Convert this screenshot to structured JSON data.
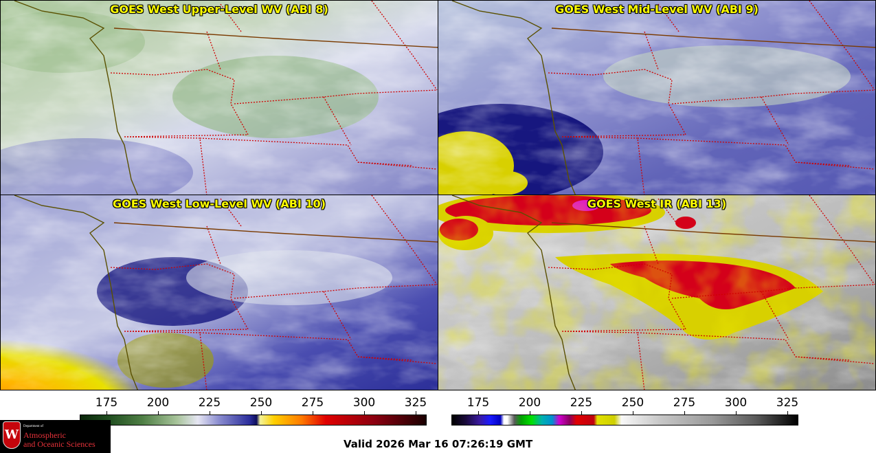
{
  "panels": [
    {
      "title": "GOES West Upper-Level WV (ABI 8)"
    },
    {
      "title": "GOES West Mid-Level WV (ABI 9)"
    },
    {
      "title": "GOES West Low-Level WV (ABI 10)"
    },
    {
      "title": "GOES West IR (ABI 13)"
    }
  ],
  "colorbars": {
    "wv": {
      "ticks": [
        "175",
        "200",
        "225",
        "250",
        "275",
        "300",
        "325"
      ]
    },
    "ir": {
      "ticks": [
        "175",
        "200",
        "225",
        "250",
        "275",
        "300",
        "325"
      ]
    }
  },
  "footer": {
    "valid_time": "Valid 2026 Mar 16 07:26:19 GMT",
    "logo": {
      "dept": "Department of",
      "line1": "Atmospheric",
      "line2": "and Oceanic Sciences",
      "seal": "W"
    }
  },
  "colors": {
    "wv_dry": "#1a1a8c",
    "wv_moist": "#6f9e5a",
    "ir_cold": "#d4001a",
    "ir_mid": "#d8d000",
    "ir_warm": "#9a9a9a",
    "state_lines": "#d00000",
    "coastline": "#6b4a00",
    "title": "#ffff00"
  }
}
